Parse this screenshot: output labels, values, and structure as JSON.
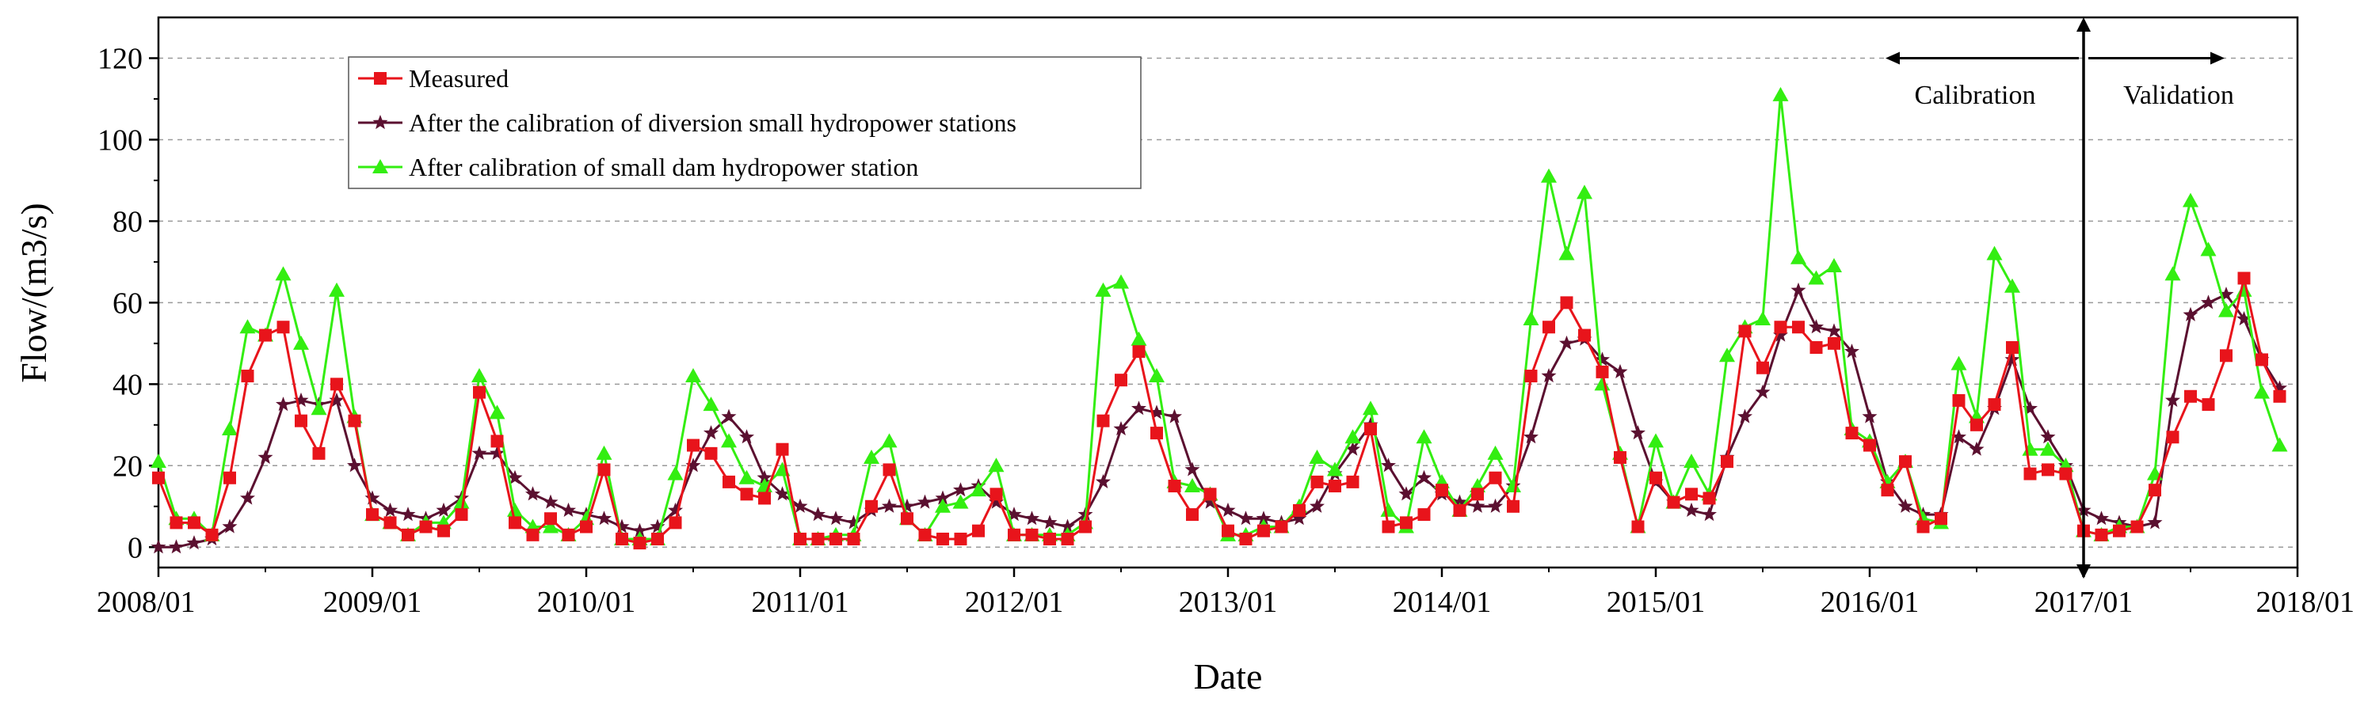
{
  "chart_data": {
    "type": "line",
    "title": "",
    "xlabel": "Date",
    "ylabel": "Flow/(m3/s)",
    "ylim": [
      -5,
      130
    ],
    "yticks": [
      0,
      20,
      40,
      60,
      80,
      100,
      120
    ],
    "xlim": [
      0,
      120
    ],
    "xtick_positions": [
      0,
      12,
      24,
      36,
      48,
      60,
      72,
      84,
      96,
      108,
      120
    ],
    "xtick_labels": [
      "2008/01",
      "2009/01",
      "2010/01",
      "2011/01",
      "2012/01",
      "2013/01",
      "2014/01",
      "2015/01",
      "2016/01",
      "2017/01",
      "2018/01"
    ],
    "grid": "horizontal dashed",
    "legend_position": "top-left",
    "x_index_description": "month index, 0 = 2008/01",
    "series": [
      {
        "name": "Measured",
        "color": "#e8141b",
        "marker": "square",
        "x_start": 0,
        "values": [
          17,
          6,
          6,
          3,
          17,
          42,
          52,
          54,
          31,
          23,
          40,
          31,
          8,
          6,
          3,
          5,
          4,
          8,
          38,
          26,
          6,
          3,
          7,
          3,
          5,
          19,
          2,
          1,
          2,
          6,
          25,
          23,
          16,
          13,
          12,
          24,
          2,
          2,
          2,
          2,
          10,
          19,
          7,
          3,
          2,
          2,
          4,
          13,
          3,
          3,
          2,
          2,
          5,
          31,
          41,
          48,
          28,
          15,
          8,
          13,
          4,
          2,
          4,
          5,
          9,
          16,
          15,
          16,
          29,
          5,
          6,
          8,
          14,
          9,
          13,
          17,
          10,
          42,
          54,
          60,
          52,
          43,
          22,
          5,
          17,
          11,
          13,
          12,
          21,
          53,
          44,
          54,
          54,
          49,
          50,
          28,
          25,
          14,
          21,
          5,
          7,
          36,
          30,
          35,
          49,
          18,
          19,
          18,
          4,
          3,
          4,
          5,
          14,
          27,
          37,
          35,
          47,
          66,
          46,
          37
        ]
      },
      {
        "name": "After the calibration of diversion small hydropower stations",
        "color": "#5b1030",
        "marker": "star",
        "x_start": 0,
        "values": [
          0,
          0,
          1,
          2,
          5,
          12,
          22,
          35,
          36,
          35,
          36,
          20,
          12,
          9,
          8,
          7,
          9,
          12,
          23,
          23,
          17,
          13,
          11,
          9,
          8,
          7,
          5,
          4,
          5,
          9,
          20,
          28,
          32,
          27,
          17,
          13,
          10,
          8,
          7,
          6,
          9,
          10,
          10,
          11,
          12,
          14,
          15,
          11,
          8,
          7,
          6,
          5,
          8,
          16,
          29,
          34,
          33,
          32,
          19,
          11,
          9,
          7,
          7,
          6,
          7,
          10,
          18,
          24,
          30,
          20,
          13,
          17,
          13,
          11,
          10,
          10,
          15,
          27,
          42,
          50,
          51,
          46,
          43,
          28,
          16,
          11,
          9,
          8,
          22,
          32,
          38,
          52,
          63,
          54,
          53,
          48,
          32,
          16,
          10,
          8,
          8,
          27,
          24,
          34,
          46,
          34,
          27,
          20,
          9,
          7,
          6,
          5,
          6,
          36,
          57,
          60,
          62,
          56,
          46,
          39
        ]
      },
      {
        "name": "After calibration of small dam hydropower station",
        "color": "#33ee11",
        "marker": "triangle",
        "x_start": 0,
        "values": [
          21,
          7,
          7,
          3,
          29,
          54,
          52,
          67,
          50,
          34,
          63,
          32,
          8,
          6,
          3,
          6,
          6,
          11,
          42,
          33,
          9,
          5,
          5,
          3,
          7,
          23,
          2,
          2,
          2,
          18,
          42,
          35,
          26,
          17,
          15,
          19,
          2,
          2,
          3,
          3,
          22,
          26,
          7,
          3,
          10,
          11,
          14,
          20,
          3,
          3,
          3,
          3,
          6,
          63,
          65,
          51,
          42,
          16,
          15,
          13,
          3,
          3,
          5,
          5,
          10,
          22,
          19,
          27,
          34,
          9,
          5,
          27,
          16,
          9,
          15,
          23,
          15,
          56,
          91,
          72,
          87,
          40,
          23,
          5,
          26,
          11,
          21,
          13,
          47,
          54,
          56,
          111,
          71,
          66,
          69,
          29,
          26,
          16,
          21,
          7,
          6,
          45,
          32,
          72,
          64,
          24,
          24,
          20,
          4,
          3,
          5,
          5,
          18,
          67,
          85,
          73,
          58,
          63,
          38,
          25
        ]
      }
    ],
    "annotations": {
      "divider_x": 108,
      "calibration_label": "Calibration",
      "validation_label": "Validation"
    }
  }
}
